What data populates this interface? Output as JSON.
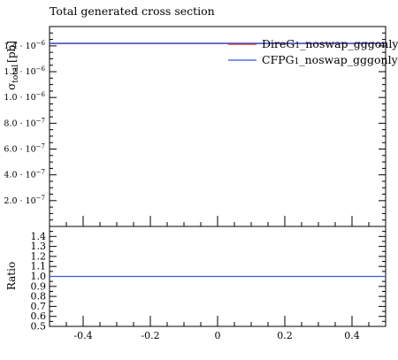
{
  "chart_data": {
    "type": "line",
    "title": "Total generated cross section",
    "main": {
      "ylabel": "σ_total [pb]",
      "ylabel_parts": {
        "sym": "σ",
        "sub": "total",
        "unit": "[pb]"
      },
      "ylim": [
        0,
        1.55e-06
      ],
      "yticks": [
        {
          "value": 2e-07,
          "mant": "2.0",
          "exp": "−7"
        },
        {
          "value": 4e-07,
          "mant": "4.0",
          "exp": "−7"
        },
        {
          "value": 6e-07,
          "mant": "6.0",
          "exp": "−7"
        },
        {
          "value": 8e-07,
          "mant": "8.0",
          "exp": "−7"
        },
        {
          "value": 1e-06,
          "mant": "1.0",
          "exp": "−6"
        },
        {
          "value": 1.2e-06,
          "mant": "1.2",
          "exp": "−6"
        },
        {
          "value": 1.4e-06,
          "mant": "1.4",
          "exp": "−6"
        }
      ],
      "series": [
        {
          "name": "DireG1_noswap_gggonly",
          "legend_main": "DireG",
          "legend_sub": "1",
          "legend_rest": "_noswap_gggonly",
          "color": "#dd2222",
          "x": [
            -0.5,
            0.5
          ],
          "y": [
            1.42e-06,
            1.42e-06
          ]
        },
        {
          "name": "CFPG1_noswap_gggonly",
          "legend_main": "CFPG",
          "legend_sub": "1",
          "legend_rest": "_noswap_gggonly",
          "color": "#3355dd",
          "x": [
            -0.5,
            0.5
          ],
          "y": [
            1.42e-06,
            1.42e-06
          ]
        }
      ]
    },
    "ratio": {
      "ylabel": "Ratio",
      "ylim": [
        0.5,
        1.5
      ],
      "yticks": [
        "0.5",
        "0.6",
        "0.7",
        "0.8",
        "0.9",
        "1.0",
        "1.1",
        "1.2",
        "1.3",
        "1.4"
      ],
      "series": [
        {
          "name": "CFPG1_noswap_gggonly",
          "color": "#3355dd",
          "x": [
            -0.5,
            0.5
          ],
          "y": [
            1.0,
            1.0
          ]
        }
      ]
    },
    "xlim": [
      -0.5,
      0.5
    ],
    "xticks": [
      "-0.4",
      "-0.2",
      "0",
      "0.2",
      "0.4"
    ],
    "legend_position": "top-right"
  }
}
